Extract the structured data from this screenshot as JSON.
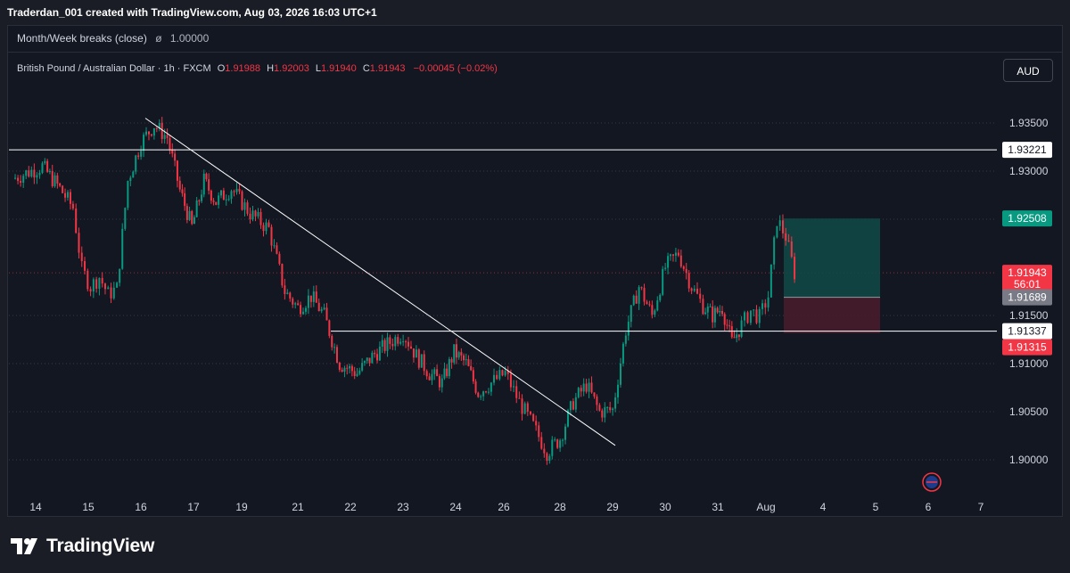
{
  "header": {
    "attribution": "Traderdan_001 created with TradingView.com, Aug 03, 2026 16:03 UTC+1"
  },
  "indicator": {
    "name": "Month/Week breaks (close)",
    "symbol": "ø",
    "value": "1.00000"
  },
  "legend": {
    "instrument": "British Pound / Australian Dollar · 1h · FXCM",
    "o_label": "O",
    "o_value": "1.91988",
    "h_label": "H",
    "h_value": "1.92003",
    "l_label": "L",
    "l_value": "1.91940",
    "c_label": "C",
    "c_value": "1.91943",
    "change": "−0.00045 (−0.02%)"
  },
  "currency_button": "AUD",
  "colors": {
    "bull": "#089981",
    "bear": "#f23645",
    "background": "#131722",
    "profit_zone": "#0f4a45",
    "loss_zone": "#4a1c2a",
    "line": "#ffffff"
  },
  "price_axis": {
    "ticks": [
      "1.93500",
      "1.93000",
      "1.92500",
      "1.91500",
      "1.91000",
      "1.90500",
      "1.90000"
    ],
    "labels": {
      "level_top": "1.93221",
      "target": "1.92508",
      "current_price": "1.91943",
      "countdown": "56:01",
      "entry": "1.91689",
      "level_mid": "1.91337",
      "stop": "1.91315"
    }
  },
  "time_axis": {
    "labels": [
      "14",
      "15",
      "16",
      "17",
      "19",
      "21",
      "22",
      "23",
      "24",
      "26",
      "28",
      "29",
      "30",
      "31",
      "Aug",
      "4",
      "5",
      "6",
      "7"
    ]
  },
  "chart_data": {
    "type": "candlestick",
    "symbol": "British Pound / Australian Dollar",
    "interval": "1h",
    "source": "FXCM",
    "ylim": [
      1.8955,
      1.9375
    ],
    "horizontal_levels": [
      1.93221,
      1.91337
    ],
    "trendline": {
      "from": [
        "16",
        1.9355
      ],
      "to": [
        "29",
        1.9015
      ]
    },
    "position": {
      "target": 1.92508,
      "entry": 1.91689,
      "stop": 1.91315
    },
    "anchors": [
      [
        "14",
        1.9292
      ],
      [
        "14",
        1.9305
      ],
      [
        "14",
        1.9282
      ],
      [
        "15",
        1.9262
      ],
      [
        "15",
        1.9198
      ],
      [
        "15",
        1.918
      ],
      [
        "15",
        1.919
      ],
      [
        "15",
        1.9172
      ],
      [
        "15",
        1.9178
      ],
      [
        "16",
        1.929
      ],
      [
        "16",
        1.933
      ],
      [
        "16",
        1.9348
      ],
      [
        "16",
        1.9335
      ],
      [
        "17",
        1.928
      ],
      [
        "17",
        1.9242
      ],
      [
        "17",
        1.929
      ],
      [
        "17",
        1.9268
      ],
      [
        "19",
        1.9282
      ],
      [
        "19",
        1.9256
      ],
      [
        "19",
        1.924
      ],
      [
        "21",
        1.9175
      ],
      [
        "21",
        1.9158
      ],
      [
        "21",
        1.917
      ],
      [
        "21",
        1.915
      ],
      [
        "22",
        1.91
      ],
      [
        "22",
        1.909
      ],
      [
        "22",
        1.911
      ],
      [
        "23",
        1.9122
      ],
      [
        "23",
        1.9132
      ],
      [
        "23",
        1.9108
      ],
      [
        "23",
        1.909
      ],
      [
        "24",
        1.908
      ],
      [
        "24",
        1.9112
      ],
      [
        "24",
        1.91
      ],
      [
        "24",
        1.907
      ],
      [
        "26",
        1.908
      ],
      [
        "26",
        1.909
      ],
      [
        "26",
        1.906
      ],
      [
        "26",
        1.9035
      ],
      [
        "28",
        1.9008
      ],
      [
        "28",
        1.9022
      ],
      [
        "28",
        1.906
      ],
      [
        "28",
        1.9078
      ],
      [
        "29",
        1.905
      ],
      [
        "29",
        1.9052
      ],
      [
        "29",
        1.9135
      ],
      [
        "29",
        1.918
      ],
      [
        "30",
        1.915
      ],
      [
        "30",
        1.92
      ],
      [
        "30",
        1.9215
      ],
      [
        "30",
        1.918
      ],
      [
        "31",
        1.916
      ],
      [
        "31",
        1.915
      ],
      [
        "31",
        1.9158
      ],
      [
        "31",
        1.9122
      ],
      [
        "31",
        1.914
      ],
      [
        "Aug",
        1.9155
      ],
      [
        "Aug",
        1.9148
      ],
      [
        "Aug",
        1.917
      ],
      [
        "Aug",
        1.925
      ],
      [
        "Aug",
        1.9232
      ],
      [
        "Aug",
        1.9194
      ]
    ]
  },
  "footer": {
    "brand": "TradingView"
  }
}
